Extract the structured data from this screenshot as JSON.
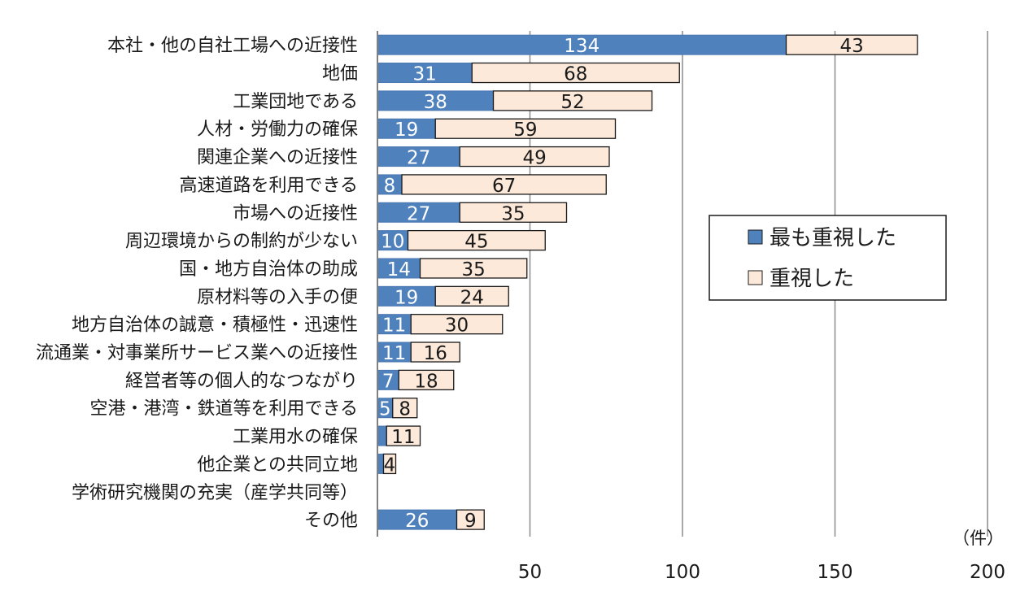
{
  "chart_data": {
    "type": "bar",
    "orientation": "horizontal",
    "stacked": true,
    "categories": [
      "本社・他の自社工場への近接性",
      "地価",
      "工業団地である",
      "人材・労働力の確保",
      "関連企業への近接性",
      "高速道路を利用できる",
      "市場への近接性",
      "周辺環境からの制約が少ない",
      "国・地方自治体の助成",
      "原材料等の入手の便",
      "地方自治体の誠意・積極性・迅速性",
      "流通業・対事業所サービス業への近接性",
      "経営者等の個人的なつながり",
      "空港・港湾・鉄道等を利用できる",
      "工業用水の確保",
      "他企業との共同立地",
      "学術研究機関の充実（産学共同等）",
      "その他"
    ],
    "series": [
      {
        "name": "最も重視した",
        "color": "#4f81bd",
        "values": [
          134,
          31,
          38,
          19,
          27,
          8,
          27,
          10,
          14,
          19,
          11,
          11,
          7,
          5,
          3,
          2,
          0,
          26
        ],
        "labels": [
          "134",
          "31",
          "38",
          "19",
          "27",
          "8",
          "27",
          "10",
          "14",
          "19",
          "11",
          "11",
          "7",
          "5",
          "",
          "",
          "",
          "26"
        ]
      },
      {
        "name": "重視した",
        "color": "#fde9d9",
        "values": [
          43,
          68,
          52,
          59,
          49,
          67,
          35,
          45,
          35,
          24,
          30,
          16,
          18,
          8,
          11,
          4,
          0,
          9
        ],
        "labels": [
          "43",
          "68",
          "52",
          "59",
          "49",
          "67",
          "35",
          "45",
          "35",
          "24",
          "30",
          "16",
          "18",
          "8",
          "11",
          "4",
          "",
          "9"
        ]
      }
    ],
    "xlim": [
      0,
      200
    ],
    "xticks": [
      "50",
      "100",
      "150",
      "200"
    ],
    "xtick_values": [
      50,
      100,
      150,
      200
    ],
    "unit": "（件）",
    "grid": "vertical",
    "legend_position": "right"
  }
}
